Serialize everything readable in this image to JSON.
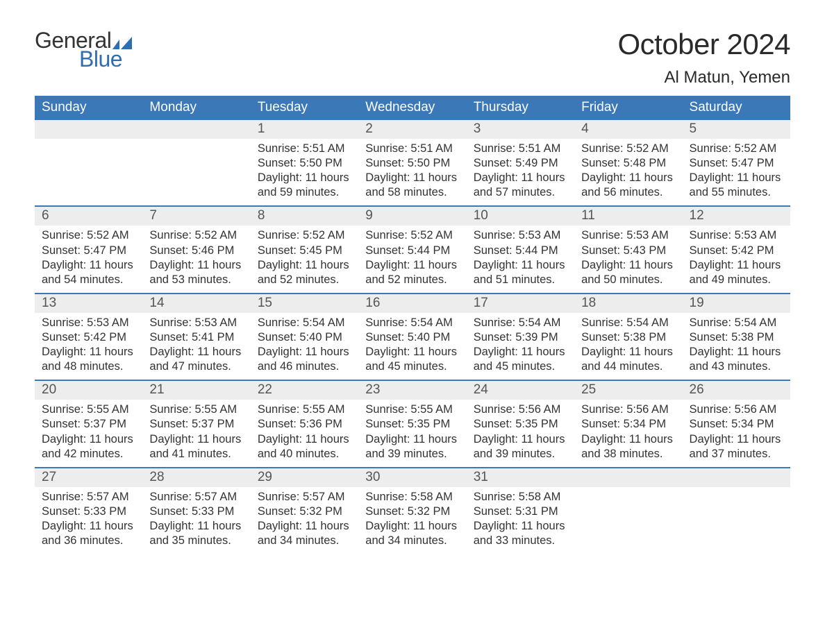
{
  "logo": {
    "text1": "General",
    "text2": "Blue",
    "flag_color": "#2f6eb0"
  },
  "header": {
    "month": "October 2024",
    "location": "Al Matun, Yemen"
  },
  "colors": {
    "header_bg": "#3b78b8",
    "header_text": "#ffffff",
    "daynum_bg": "#ededed",
    "week_border": "#3b78b8",
    "body_text": "#333333",
    "logo_blue": "#2f6eb0"
  },
  "day_names": [
    "Sunday",
    "Monday",
    "Tuesday",
    "Wednesday",
    "Thursday",
    "Friday",
    "Saturday"
  ],
  "weeks": [
    [
      null,
      null,
      {
        "n": "1",
        "sr": "Sunrise: 5:51 AM",
        "ss": "Sunset: 5:50 PM",
        "d1": "Daylight: 11 hours",
        "d2": "and 59 minutes."
      },
      {
        "n": "2",
        "sr": "Sunrise: 5:51 AM",
        "ss": "Sunset: 5:50 PM",
        "d1": "Daylight: 11 hours",
        "d2": "and 58 minutes."
      },
      {
        "n": "3",
        "sr": "Sunrise: 5:51 AM",
        "ss": "Sunset: 5:49 PM",
        "d1": "Daylight: 11 hours",
        "d2": "and 57 minutes."
      },
      {
        "n": "4",
        "sr": "Sunrise: 5:52 AM",
        "ss": "Sunset: 5:48 PM",
        "d1": "Daylight: 11 hours",
        "d2": "and 56 minutes."
      },
      {
        "n": "5",
        "sr": "Sunrise: 5:52 AM",
        "ss": "Sunset: 5:47 PM",
        "d1": "Daylight: 11 hours",
        "d2": "and 55 minutes."
      }
    ],
    [
      {
        "n": "6",
        "sr": "Sunrise: 5:52 AM",
        "ss": "Sunset: 5:47 PM",
        "d1": "Daylight: 11 hours",
        "d2": "and 54 minutes."
      },
      {
        "n": "7",
        "sr": "Sunrise: 5:52 AM",
        "ss": "Sunset: 5:46 PM",
        "d1": "Daylight: 11 hours",
        "d2": "and 53 minutes."
      },
      {
        "n": "8",
        "sr": "Sunrise: 5:52 AM",
        "ss": "Sunset: 5:45 PM",
        "d1": "Daylight: 11 hours",
        "d2": "and 52 minutes."
      },
      {
        "n": "9",
        "sr": "Sunrise: 5:52 AM",
        "ss": "Sunset: 5:44 PM",
        "d1": "Daylight: 11 hours",
        "d2": "and 52 minutes."
      },
      {
        "n": "10",
        "sr": "Sunrise: 5:53 AM",
        "ss": "Sunset: 5:44 PM",
        "d1": "Daylight: 11 hours",
        "d2": "and 51 minutes."
      },
      {
        "n": "11",
        "sr": "Sunrise: 5:53 AM",
        "ss": "Sunset: 5:43 PM",
        "d1": "Daylight: 11 hours",
        "d2": "and 50 minutes."
      },
      {
        "n": "12",
        "sr": "Sunrise: 5:53 AM",
        "ss": "Sunset: 5:42 PM",
        "d1": "Daylight: 11 hours",
        "d2": "and 49 minutes."
      }
    ],
    [
      {
        "n": "13",
        "sr": "Sunrise: 5:53 AM",
        "ss": "Sunset: 5:42 PM",
        "d1": "Daylight: 11 hours",
        "d2": "and 48 minutes."
      },
      {
        "n": "14",
        "sr": "Sunrise: 5:53 AM",
        "ss": "Sunset: 5:41 PM",
        "d1": "Daylight: 11 hours",
        "d2": "and 47 minutes."
      },
      {
        "n": "15",
        "sr": "Sunrise: 5:54 AM",
        "ss": "Sunset: 5:40 PM",
        "d1": "Daylight: 11 hours",
        "d2": "and 46 minutes."
      },
      {
        "n": "16",
        "sr": "Sunrise: 5:54 AM",
        "ss": "Sunset: 5:40 PM",
        "d1": "Daylight: 11 hours",
        "d2": "and 45 minutes."
      },
      {
        "n": "17",
        "sr": "Sunrise: 5:54 AM",
        "ss": "Sunset: 5:39 PM",
        "d1": "Daylight: 11 hours",
        "d2": "and 45 minutes."
      },
      {
        "n": "18",
        "sr": "Sunrise: 5:54 AM",
        "ss": "Sunset: 5:38 PM",
        "d1": "Daylight: 11 hours",
        "d2": "and 44 minutes."
      },
      {
        "n": "19",
        "sr": "Sunrise: 5:54 AM",
        "ss": "Sunset: 5:38 PM",
        "d1": "Daylight: 11 hours",
        "d2": "and 43 minutes."
      }
    ],
    [
      {
        "n": "20",
        "sr": "Sunrise: 5:55 AM",
        "ss": "Sunset: 5:37 PM",
        "d1": "Daylight: 11 hours",
        "d2": "and 42 minutes."
      },
      {
        "n": "21",
        "sr": "Sunrise: 5:55 AM",
        "ss": "Sunset: 5:37 PM",
        "d1": "Daylight: 11 hours",
        "d2": "and 41 minutes."
      },
      {
        "n": "22",
        "sr": "Sunrise: 5:55 AM",
        "ss": "Sunset: 5:36 PM",
        "d1": "Daylight: 11 hours",
        "d2": "and 40 minutes."
      },
      {
        "n": "23",
        "sr": "Sunrise: 5:55 AM",
        "ss": "Sunset: 5:35 PM",
        "d1": "Daylight: 11 hours",
        "d2": "and 39 minutes."
      },
      {
        "n": "24",
        "sr": "Sunrise: 5:56 AM",
        "ss": "Sunset: 5:35 PM",
        "d1": "Daylight: 11 hours",
        "d2": "and 39 minutes."
      },
      {
        "n": "25",
        "sr": "Sunrise: 5:56 AM",
        "ss": "Sunset: 5:34 PM",
        "d1": "Daylight: 11 hours",
        "d2": "and 38 minutes."
      },
      {
        "n": "26",
        "sr": "Sunrise: 5:56 AM",
        "ss": "Sunset: 5:34 PM",
        "d1": "Daylight: 11 hours",
        "d2": "and 37 minutes."
      }
    ],
    [
      {
        "n": "27",
        "sr": "Sunrise: 5:57 AM",
        "ss": "Sunset: 5:33 PM",
        "d1": "Daylight: 11 hours",
        "d2": "and 36 minutes."
      },
      {
        "n": "28",
        "sr": "Sunrise: 5:57 AM",
        "ss": "Sunset: 5:33 PM",
        "d1": "Daylight: 11 hours",
        "d2": "and 35 minutes."
      },
      {
        "n": "29",
        "sr": "Sunrise: 5:57 AM",
        "ss": "Sunset: 5:32 PM",
        "d1": "Daylight: 11 hours",
        "d2": "and 34 minutes."
      },
      {
        "n": "30",
        "sr": "Sunrise: 5:58 AM",
        "ss": "Sunset: 5:32 PM",
        "d1": "Daylight: 11 hours",
        "d2": "and 34 minutes."
      },
      {
        "n": "31",
        "sr": "Sunrise: 5:58 AM",
        "ss": "Sunset: 5:31 PM",
        "d1": "Daylight: 11 hours",
        "d2": "and 33 minutes."
      },
      null,
      null
    ]
  ]
}
